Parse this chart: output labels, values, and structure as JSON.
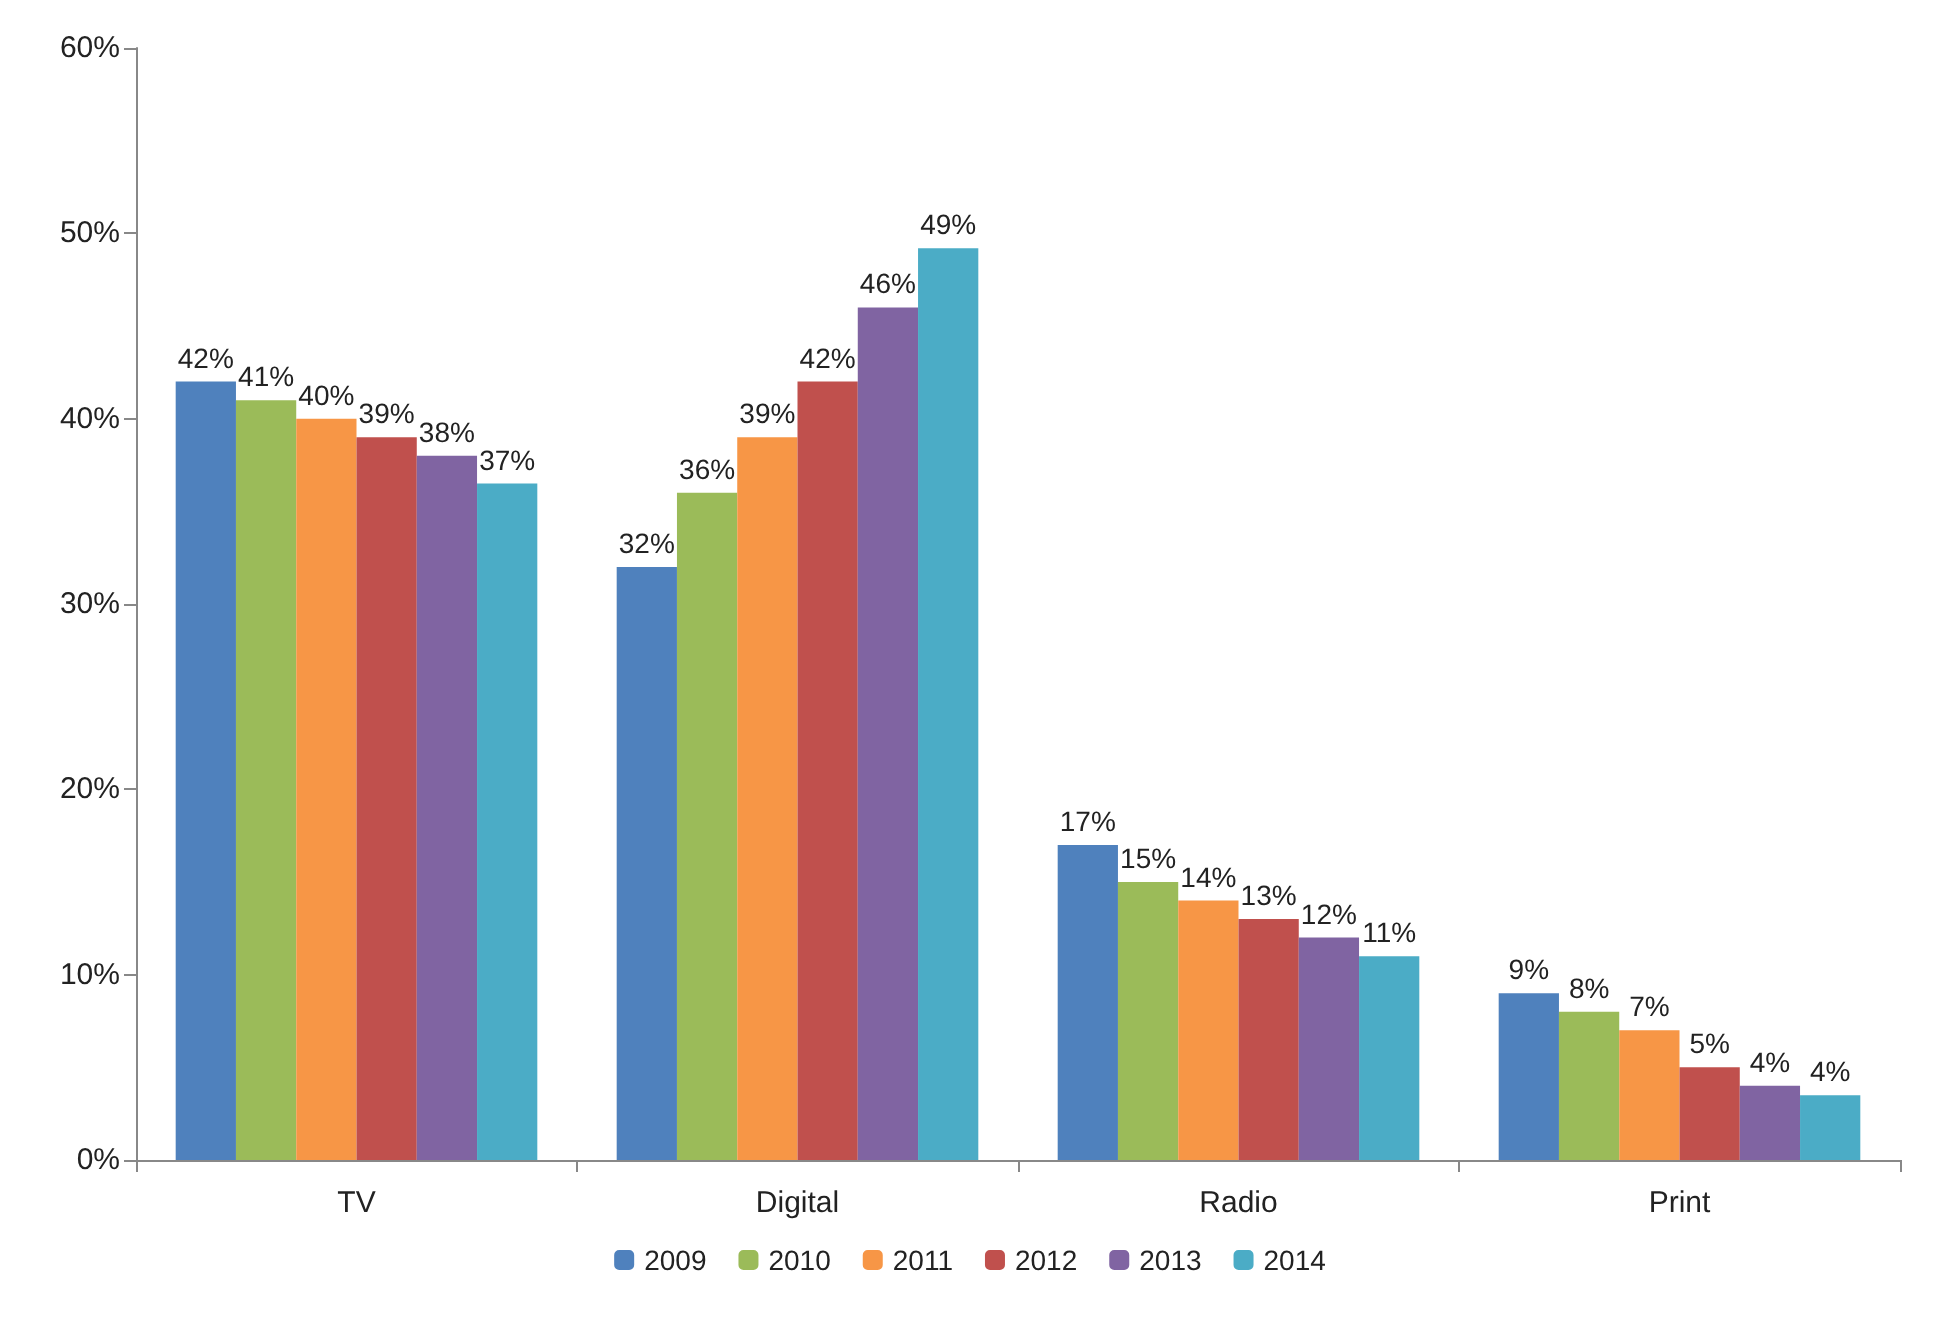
{
  "chart_data": {
    "type": "bar",
    "categories": [
      "TV",
      "Digital",
      "Radio",
      "Print"
    ],
    "series": [
      {
        "name": "2009",
        "color": "#4f81bd",
        "values": [
          42,
          32,
          17,
          9
        ],
        "value_labels": [
          "42%",
          "32%",
          "17%",
          "9%"
        ]
      },
      {
        "name": "2010",
        "color": "#9bbb59",
        "values": [
          41,
          36,
          15,
          8
        ],
        "value_labels": [
          "41%",
          "36%",
          "15%",
          "8%"
        ]
      },
      {
        "name": "2011",
        "color": "#f79646",
        "values": [
          40,
          39,
          14,
          7
        ],
        "value_labels": [
          "40%",
          "39%",
          "14%",
          "7%"
        ]
      },
      {
        "name": "2012",
        "color": "#c0504d",
        "values": [
          39,
          42,
          13,
          5
        ],
        "value_labels": [
          "39%",
          "42%",
          "13%",
          "5%"
        ]
      },
      {
        "name": "2013",
        "color": "#8064a2",
        "values": [
          38,
          46,
          12,
          4
        ],
        "value_labels": [
          "38%",
          "46%",
          "12%",
          "4%"
        ]
      },
      {
        "name": "2014",
        "color": "#4bacc6",
        "values": [
          36.5,
          49.2,
          11,
          3.5
        ],
        "value_labels": [
          "37%",
          "49%",
          "11%",
          "4%"
        ]
      }
    ],
    "ylim": [
      0,
      60
    ],
    "yticks": [
      {
        "value": 0,
        "label": "0%"
      },
      {
        "value": 10,
        "label": "10%"
      },
      {
        "value": 20,
        "label": "20%"
      },
      {
        "value": 30,
        "label": "30%"
      },
      {
        "value": 40,
        "label": "40%"
      },
      {
        "value": 50,
        "label": "50%"
      },
      {
        "value": 60,
        "label": "60%"
      }
    ],
    "grid": false,
    "legend": "bottom"
  }
}
